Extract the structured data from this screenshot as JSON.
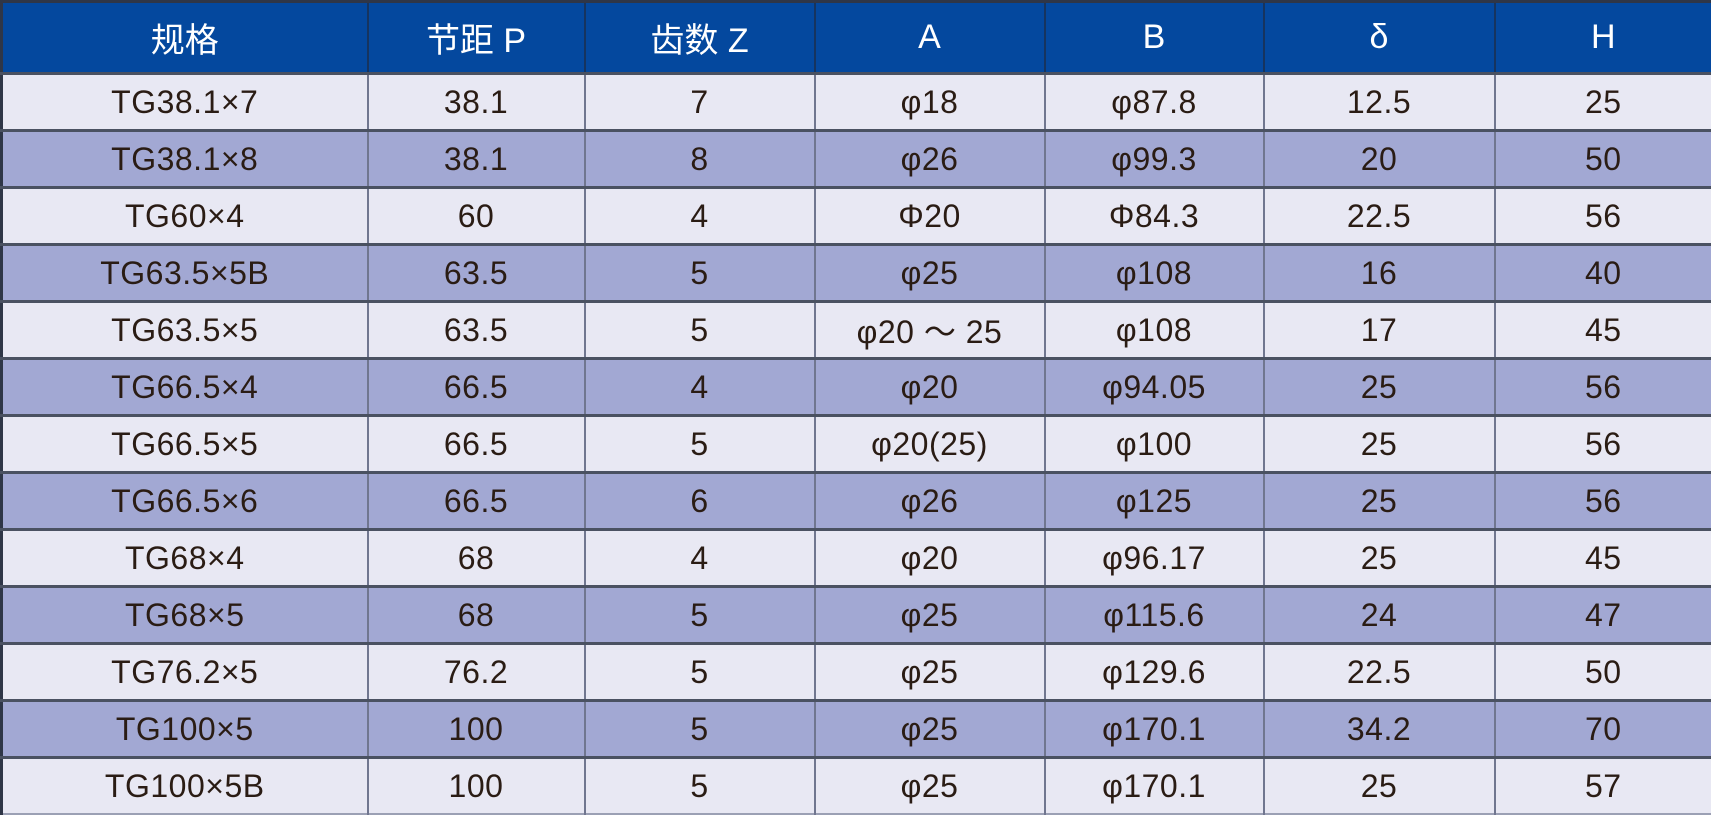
{
  "colors": {
    "header_bg": "#04489e",
    "header_text": "#ffffff",
    "row_light": "#e8e8f3",
    "row_dark": "#a2a8d3",
    "body_text": "#2a1c14",
    "horizontal_border": "#4a5161",
    "vertical_border": "#70768f"
  },
  "chart_data": {
    "type": "table",
    "title": "",
    "columns": [
      "规格",
      "节距 P",
      "齿数 Z",
      "A",
      "B",
      "δ",
      "H"
    ],
    "rows": [
      [
        "TG38.1×7",
        "38.1",
        "7",
        "φ18",
        "φ87.8",
        "12.5",
        "25"
      ],
      [
        "TG38.1×8",
        "38.1",
        "8",
        "φ26",
        "φ99.3",
        "20",
        "50"
      ],
      [
        "TG60×4",
        "60",
        "4",
        "Φ20",
        "Φ84.3",
        "22.5",
        "56"
      ],
      [
        "TG63.5×5B",
        "63.5",
        "5",
        "φ25",
        "φ108",
        "16",
        "40"
      ],
      [
        "TG63.5×5",
        "63.5",
        "5",
        "φ20 ～ 25",
        "φ108",
        "17",
        "45"
      ],
      [
        "TG66.5×4",
        "66.5",
        "4",
        "φ20",
        "φ94.05",
        "25",
        "56"
      ],
      [
        "TG66.5×5",
        "66.5",
        "5",
        "φ20(25)",
        "φ100",
        "25",
        "56"
      ],
      [
        "TG66.5×6",
        "66.5",
        "6",
        "φ26",
        "φ125",
        "25",
        "56"
      ],
      [
        "TG68×4",
        "68",
        "4",
        "φ20",
        "φ96.17",
        "25",
        "45"
      ],
      [
        "TG68×5",
        "68",
        "5",
        "φ25",
        "φ115.6",
        "24",
        "47"
      ],
      [
        "TG76.2×5",
        "76.2",
        "5",
        "φ25",
        "φ129.6",
        "22.5",
        "50"
      ],
      [
        "TG100×5",
        "100",
        "5",
        "φ25",
        "φ170.1",
        "34.2",
        "70"
      ],
      [
        "TG100×5B",
        "100",
        "5",
        "φ25",
        "φ170.1",
        "25",
        "57"
      ]
    ]
  }
}
